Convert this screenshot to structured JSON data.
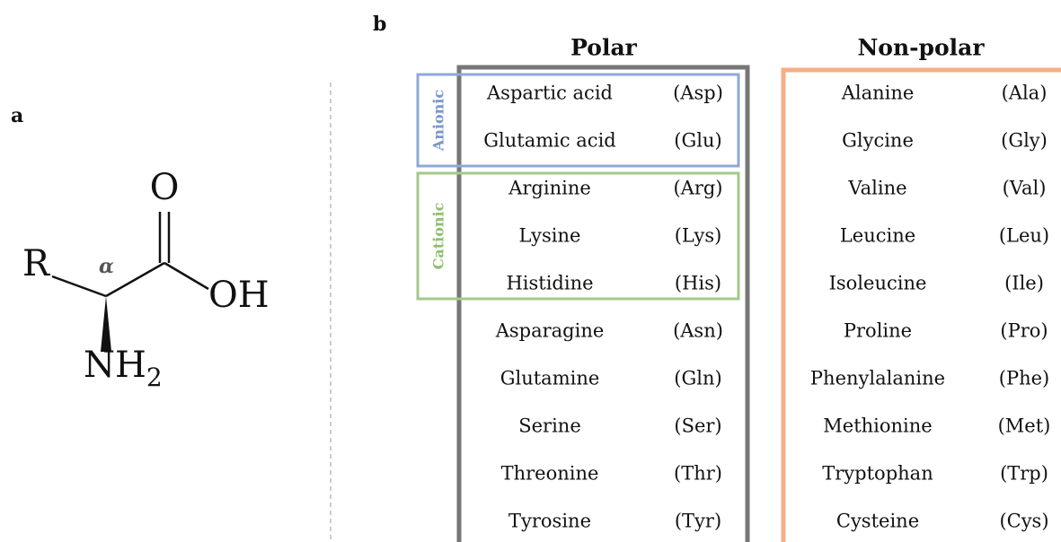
{
  "panels": {
    "a": "a",
    "b": "b"
  },
  "molecule": {
    "r": "R",
    "alpha": "α",
    "o": "O",
    "oh": "OH",
    "nh": "NH",
    "sub": "2"
  },
  "table": {
    "headers": [
      "Polar",
      "Non-polar"
    ],
    "groups": [
      "Anionic",
      "Cationic"
    ],
    "polar": [
      [
        "Aspartic acid",
        "(Asp)"
      ],
      [
        "Glutamic acid",
        "(Glu)"
      ],
      [
        "Arginine",
        "(Arg)"
      ],
      [
        "Lysine",
        "(Lys)"
      ],
      [
        "Histidine",
        "(His)"
      ],
      [
        "Asparagine",
        "(Asn)"
      ],
      [
        "Glutamine",
        "(Gln)"
      ],
      [
        "Serine",
        "(Ser)"
      ],
      [
        "Threonine",
        "(Thr)"
      ],
      [
        "Tyrosine",
        "(Tyr)"
      ]
    ],
    "nonpolar": [
      [
        "Alanine",
        "(Ala)"
      ],
      [
        "Glycine",
        "(Gly)"
      ],
      [
        "Valine",
        "(Val)"
      ],
      [
        "Leucine",
        "(Leu)"
      ],
      [
        "Isoleucine",
        "(Ile)"
      ],
      [
        "Proline",
        "(Pro)"
      ],
      [
        "Phenylalanine",
        "(Phe)"
      ],
      [
        "Methionine",
        "(Met)"
      ],
      [
        "Tryptophan",
        "(Trp)"
      ],
      [
        "Cysteine",
        "(Cys)"
      ]
    ]
  }
}
